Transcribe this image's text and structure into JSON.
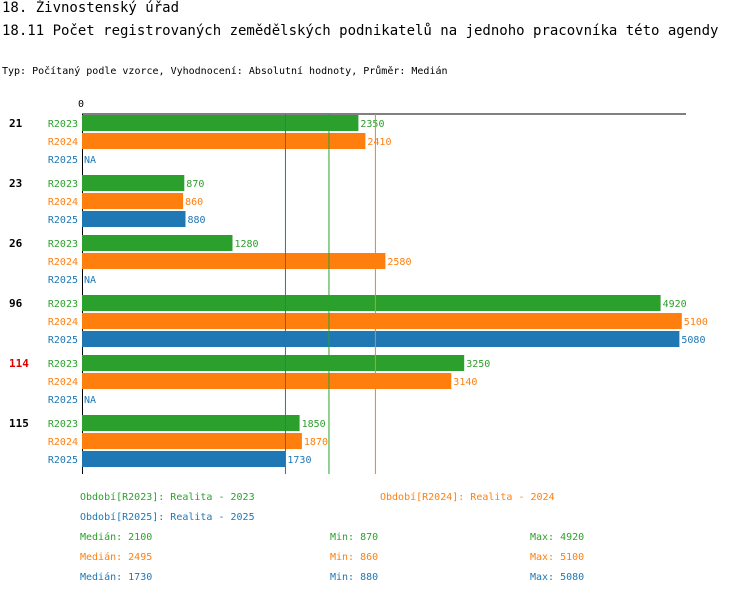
{
  "header": {
    "section": "18. Živnostenský úřad",
    "title": "18.11 Počet  registrovaných zemědělských podnikatelů na jednoho pracovníka  této agendy",
    "subtitle": "Typ: Počítaný podle vzorce, Vyhodnocení: Absolutní hodnoty, Průměr: Medián"
  },
  "chart_data": {
    "type": "bar",
    "orientation": "horizontal",
    "axis_zero_label": "0",
    "xlim": [
      0,
      5200
    ],
    "categories": [
      "21",
      "23",
      "26",
      "96",
      "114",
      "115"
    ],
    "highlighted_category": "114",
    "series": [
      {
        "name": "R2023",
        "color": "#2ca02c",
        "values": [
          2350,
          870,
          1280,
          4920,
          3250,
          1850
        ]
      },
      {
        "name": "R2024",
        "color": "#ff7f0e",
        "values": [
          2410,
          860,
          2580,
          5100,
          3140,
          1870
        ]
      },
      {
        "name": "R2025",
        "color": "#1f77b4",
        "values": [
          null,
          880,
          null,
          5080,
          null,
          1730
        ]
      }
    ],
    "missing_label": "NA",
    "median_lines": [
      {
        "series": "R2023",
        "value": 2100
      },
      {
        "series": "R2024",
        "value": 2495
      },
      {
        "series": "R2025",
        "value": 1730
      }
    ],
    "legend": [
      {
        "text": "Období[R2023]: Realita - 2023",
        "color": "#2ca02c"
      },
      {
        "text": "Období[R2024]: Realita - 2024",
        "color": "#ff7f0e"
      },
      {
        "text": "Období[R2025]: Realita - 2025",
        "color": "#1f77b4"
      }
    ],
    "stats": [
      {
        "median": "Medián: 2100",
        "min": "Min: 870",
        "max": "Max: 4920",
        "color": "#2ca02c"
      },
      {
        "median": "Medián: 2495",
        "min": "Min: 860",
        "max": "Max: 5100",
        "color": "#ff7f0e"
      },
      {
        "median": "Medián: 1730",
        "min": "Min: 880",
        "max": "Max: 5080",
        "color": "#1f77b4"
      }
    ]
  }
}
